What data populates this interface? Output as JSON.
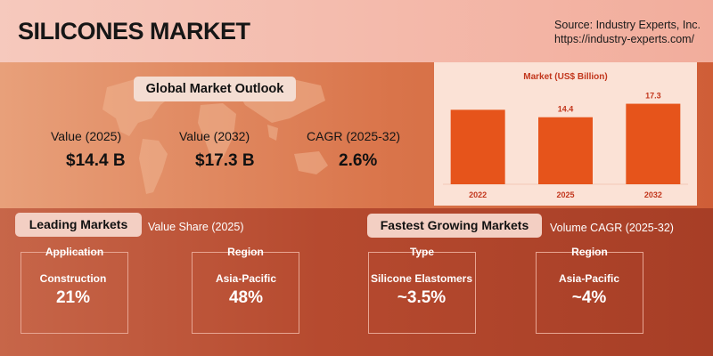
{
  "header": {
    "title": "SILICONES MARKET",
    "source_line1": "Source: Industry Experts, Inc.",
    "source_line2": "https://industry-experts.com/"
  },
  "outlook": {
    "title": "Global Market Outlook",
    "metrics": [
      {
        "label": "Value (2025)",
        "value": "$14.4 B"
      },
      {
        "label": "Value (2032)",
        "value": "$17.3 B"
      },
      {
        "label": "CAGR (2025-32)",
        "value": "2.6%"
      }
    ]
  },
  "chart_data": {
    "type": "bar",
    "title": "Market (US$ Billion)",
    "categories": [
      "2022",
      "2025",
      "2032"
    ],
    "values": [
      16.0,
      14.4,
      17.3
    ],
    "data_labels": [
      "",
      "14.4",
      "17.3"
    ],
    "ylim": [
      0,
      22
    ],
    "grid": false,
    "bar_color": "#e6541b"
  },
  "leading": {
    "title": "Leading Markets",
    "subtitle": "Value Share (2025)",
    "cards": [
      {
        "heading": "Application",
        "name": "Construction",
        "value": "21%"
      },
      {
        "heading": "Region",
        "name": "Asia-Pacific",
        "value": "48%"
      }
    ]
  },
  "fastest": {
    "title": "Fastest Growing Markets",
    "subtitle": "Volume CAGR (2025-32)",
    "cards": [
      {
        "heading": "Type",
        "name": "Silicone Elastomers",
        "value": "~3.5%"
      },
      {
        "heading": "Region",
        "name": "Asia-Pacific",
        "value": "~4%"
      }
    ]
  },
  "colors": {
    "accent_red": "#c2361c",
    "bar": "#e6541b"
  }
}
